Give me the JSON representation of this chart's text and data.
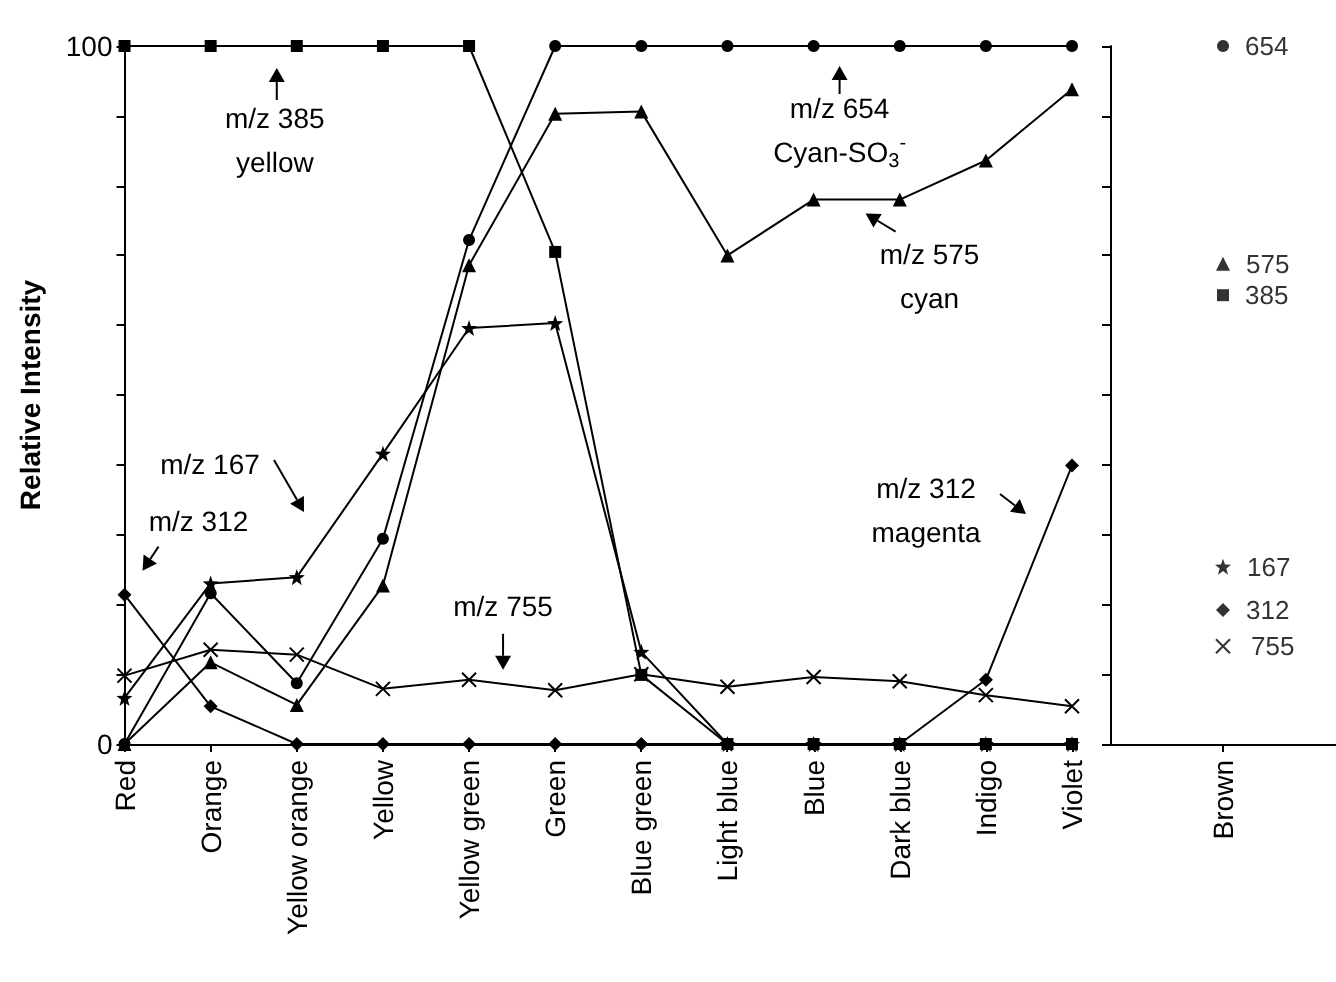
{
  "chart_data": [
    {
      "type": "line",
      "ylabel": "Relative Intensity",
      "categories": [
        "Red",
        "Orange",
        "Yellow orange",
        "Yellow",
        "Yellow green",
        "Green",
        "Blue green",
        "Light blue",
        "Blue",
        "Dark blue",
        "Indigo",
        "Violet"
      ],
      "series": [
        {
          "color": "#000000",
          "marker": "circle",
          "values": [
            0,
            21.6,
            8.7,
            29.4,
            72.2,
            100,
            100,
            100,
            100,
            100,
            100,
            100
          ]
        },
        {
          "color": "#000000",
          "marker": "triangle",
          "values": [
            0,
            11.7,
            5.6,
            22.7,
            68.6,
            90.3,
            90.6,
            70,
            78,
            78,
            83.6,
            93.8
          ]
        },
        {
          "color": "#000000",
          "marker": "square",
          "values": [
            100,
            100,
            100,
            100,
            100,
            70.5,
            9.9,
            0,
            0,
            0,
            0,
            0
          ]
        },
        {
          "color": "#000000",
          "marker": "star",
          "values": [
            6.6,
            23,
            23.9,
            41.6,
            59.6,
            60.3,
            13.2,
            0,
            0,
            0,
            0,
            0
          ]
        },
        {
          "color": "#000000",
          "marker": "diamond",
          "values": [
            21.4,
            5.4,
            0,
            0,
            0,
            0,
            0,
            0,
            0,
            0,
            9.2,
            39.9
          ]
        },
        {
          "color": "#000000",
          "marker": "cross",
          "values": [
            9.8,
            13.5,
            12.8,
            7.9,
            9.2,
            7.7,
            10,
            8.2,
            9.6,
            9,
            7,
            5.4
          ]
        }
      ],
      "ylim": [
        0,
        100
      ],
      "yticks": [
        0,
        {
          "value": 10,
          "label": null
        },
        {
          "value": 20,
          "label": null
        },
        {
          "value": 30,
          "label": null
        },
        {
          "value": 40,
          "label": null
        },
        {
          "value": 50,
          "label": null
        },
        {
          "value": 60,
          "label": null
        },
        {
          "value": 70,
          "label": null
        },
        {
          "value": 80,
          "label": null
        },
        {
          "value": 90,
          "label": null
        },
        100
      ],
      "annotations": [
        {
          "text": "m/z 385\nyellow",
          "x": "Yellow orange",
          "y": 100
        },
        {
          "text": "m/z 654\nCyan-SO$_{3}$$^{-}$",
          "x": "Blue",
          "y": 100
        },
        {
          "text": "m/z 575\ncyan",
          "x": "Blue",
          "y": 78
        },
        "m/z 167",
        {
          "text": "m/z 312",
          "x": "Red",
          "y": 21.4
        },
        "m/z 312\nmagenta",
        {
          "text": "m/z 755",
          "x": "Yellow green",
          "y": 9.2
        }
      ],
      "grid": false,
      "legend": false
    },
    {
      "type": "scatter",
      "categories": [
        "Brown"
      ],
      "series": [
        {
          "name": "654",
          "color": "#000000",
          "marker": "circle",
          "values": [
            100
          ]
        },
        {
          "name": "575",
          "color": "#000000",
          "marker": "triangle",
          "values": [
            68.8
          ]
        },
        {
          "name": "385",
          "color": "#000000",
          "marker": "square",
          "values": [
            64.3
          ]
        },
        {
          "name": "167",
          "color": "#000000",
          "marker": "star",
          "values": [
            25.4
          ]
        },
        {
          "name": "312",
          "color": "#000000",
          "marker": "diamond",
          "values": [
            19.2
          ]
        },
        {
          "name": "755",
          "color": "#000000",
          "marker": "cross",
          "values": [
            14
          ]
        }
      ],
      "ylim": [
        0,
        100
      ],
      "yticks": [
        {
          "value": 0,
          "label": null
        },
        {
          "value": 10,
          "label": null
        },
        {
          "value": 20,
          "label": null
        },
        {
          "value": 30,
          "label": null
        },
        {
          "value": 40,
          "label": null
        },
        {
          "value": 50,
          "label": null
        },
        {
          "value": 60,
          "label": null
        },
        {
          "value": 70,
          "label": null
        },
        {
          "value": 80,
          "label": null
        },
        {
          "value": 90,
          "label": null
        },
        {
          "value": 100,
          "label": null
        }
      ],
      "tick_labels": "x",
      "grid": false,
      "legend": false
    }
  ]
}
